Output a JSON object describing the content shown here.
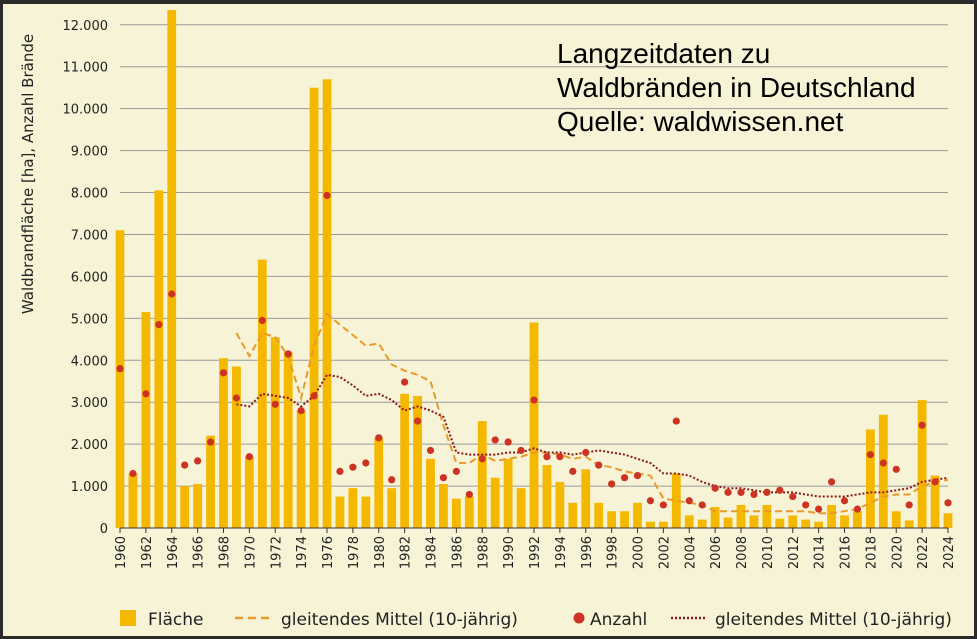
{
  "annotation": {
    "lines": [
      "Langzeitdaten zu",
      "Waldbränden in Deutschland",
      "Quelle: waldwissen.net"
    ]
  },
  "colors": {
    "background": "#f7f3d6",
    "bar": "#f5b800",
    "area_ma": "#e89a2a",
    "count": "#cc3322",
    "count_ma": "#8b1a1a",
    "grid": "#9a9a9a"
  },
  "chart_data": {
    "type": "bar",
    "title": "",
    "xlabel": "",
    "ylabel": "Waldbrandfläche [ha], Anzahl Brände",
    "ylim": [
      0,
      12400
    ],
    "yticks": [
      0,
      1000,
      2000,
      3000,
      4000,
      5000,
      6000,
      7000,
      8000,
      9000,
      10000,
      11000,
      12000
    ],
    "ytick_labels": [
      "0",
      "1.000",
      "2.000",
      "3.000",
      "4.000",
      "5.000",
      "6.000",
      "7.000",
      "8.000",
      "9.000",
      "10.000",
      "11.000",
      "12.000"
    ],
    "grid": true,
    "legend_position": "bottom",
    "x": [
      1960,
      1961,
      1962,
      1963,
      1964,
      1965,
      1966,
      1967,
      1968,
      1969,
      1970,
      1971,
      1972,
      1973,
      1974,
      1975,
      1976,
      1977,
      1978,
      1979,
      1980,
      1981,
      1982,
      1983,
      1984,
      1985,
      1986,
      1987,
      1988,
      1989,
      1990,
      1991,
      1992,
      1993,
      1994,
      1995,
      1996,
      1997,
      1998,
      1999,
      2000,
      2001,
      2002,
      2003,
      2004,
      2005,
      2006,
      2007,
      2008,
      2009,
      2010,
      2011,
      2012,
      2013,
      2014,
      2015,
      2016,
      2017,
      2018,
      2019,
      2020,
      2021,
      2022,
      2023,
      2024
    ],
    "xtick_labels": [
      "1960",
      "1962",
      "1964",
      "1966",
      "1968",
      "1970",
      "1972",
      "1974",
      "1976",
      "1978",
      "1980",
      "1982",
      "1984",
      "1986",
      "1988",
      "1990",
      "1992",
      "1994",
      "1996",
      "1998",
      "2000",
      "2002",
      "2004",
      "2006",
      "2008",
      "2010",
      "2012",
      "2014",
      "2016",
      "2018",
      "2020",
      "2022",
      "2024"
    ],
    "series": [
      {
        "name": "Fläche",
        "kind": "bar",
        "values": [
          7100,
          1300,
          5150,
          8050,
          12350,
          1000,
          1050,
          2200,
          4050,
          3850,
          1700,
          6400,
          4550,
          4200,
          2800,
          10500,
          10700,
          750,
          950,
          750,
          2150,
          950,
          3200,
          3150,
          1650,
          1050,
          700,
          750,
          2550,
          1200,
          1650,
          950,
          4900,
          1500,
          1100,
          600,
          1400,
          600,
          400,
          400,
          600,
          150,
          150,
          1300,
          300,
          200,
          500,
          250,
          550,
          300,
          550,
          220,
          300,
          200,
          150,
          550,
          300,
          400,
          2350,
          2700,
          400,
          180,
          3050,
          1250,
          350
        ]
      },
      {
        "name": "gleitendes Mittel (10-jährig)",
        "kind": "dashed-line",
        "values": [
          null,
          null,
          null,
          null,
          null,
          null,
          null,
          null,
          null,
          4650,
          4100,
          4650,
          4550,
          4100,
          3100,
          4350,
          5100,
          4850,
          4600,
          4350,
          4400,
          3900,
          3750,
          3650,
          3500,
          2450,
          1550,
          1550,
          1750,
          1600,
          1650,
          1700,
          1800,
          1800,
          1750,
          1650,
          1700,
          1500,
          1450,
          1350,
          1300,
          1250,
          700,
          650,
          600,
          550,
          400,
          400,
          400,
          400,
          400,
          400,
          400,
          400,
          350,
          350,
          400,
          450,
          600,
          750,
          800,
          800,
          1000,
          1100,
          1150
        ]
      },
      {
        "name": "Anzahl",
        "kind": "dots",
        "values": [
          3800,
          1300,
          3200,
          4850,
          5580,
          1500,
          1600,
          2050,
          3700,
          3100,
          1700,
          4950,
          2950,
          4150,
          2800,
          3150,
          7930,
          1350,
          1450,
          1550,
          2150,
          1150,
          3480,
          2550,
          1850,
          1200,
          1350,
          800,
          1650,
          2100,
          2050,
          1850,
          3050,
          1700,
          1700,
          1350,
          1800,
          1500,
          1050,
          1200,
          1250,
          650,
          550,
          2550,
          650,
          550,
          950,
          850,
          850,
          800,
          850,
          900,
          750,
          550,
          450,
          1100,
          650,
          450,
          1750,
          1550,
          1400,
          550,
          2450,
          1100,
          600
        ]
      },
      {
        "name": "gleitendes Mittel (10-jährig)",
        "kind": "dotted-line",
        "values": [
          null,
          null,
          null,
          null,
          null,
          null,
          null,
          null,
          null,
          2950,
          2900,
          3200,
          3150,
          3100,
          2900,
          3150,
          3650,
          3600,
          3400,
          3150,
          3200,
          3050,
          2800,
          2900,
          2800,
          2650,
          1800,
          1750,
          1750,
          1750,
          1800,
          1800,
          1900,
          1800,
          1800,
          1750,
          1800,
          1850,
          1800,
          1750,
          1650,
          1550,
          1300,
          1300,
          1250,
          1100,
          1000,
          950,
          950,
          900,
          850,
          850,
          850,
          800,
          750,
          750,
          750,
          800,
          850,
          850,
          900,
          950,
          1100,
          1150,
          1200
        ]
      }
    ]
  }
}
